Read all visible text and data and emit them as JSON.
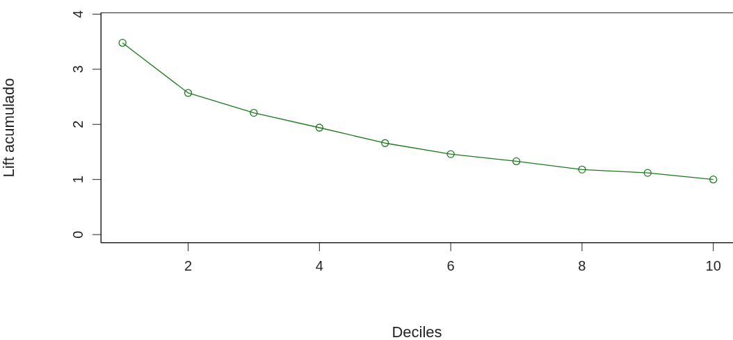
{
  "chart_data": {
    "type": "line",
    "xlabel": "Deciles",
    "ylabel": "Lift acumulado",
    "x": [
      1,
      2,
      3,
      4,
      5,
      6,
      7,
      8,
      9,
      10
    ],
    "series": [
      {
        "color": "#1a7a1a",
        "values": [
          3.48,
          2.57,
          2.21,
          1.94,
          1.66,
          1.46,
          1.33,
          1.18,
          1.12,
          1.0
        ]
      }
    ],
    "xlim": [
      0.67,
      10.3
    ],
    "xticks": [
      2,
      4,
      6,
      8,
      10
    ],
    "ylim": [
      -0.15,
      4.03
    ],
    "yticks": [
      0,
      1,
      2,
      3,
      4
    ],
    "grid": false,
    "legend": false,
    "marker": "circle",
    "line_style": "solid"
  }
}
